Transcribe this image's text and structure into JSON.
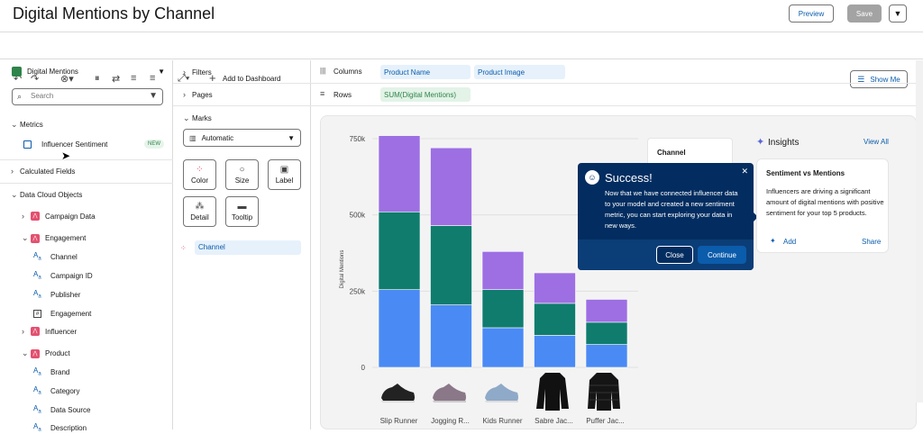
{
  "header": {
    "title": "Digital Mentions by Channel",
    "preview_label": "Preview",
    "save_label": "Save"
  },
  "toolbar": {
    "add_dashboard_label": "Add to Dashboard",
    "show_me_label": "Show Me"
  },
  "data_panel": {
    "source_label": "Digital Mentions",
    "search_placeholder": "Search",
    "metrics_label": "Metrics",
    "metric_item": "Influencer Sentiment",
    "metric_badge": "NEW",
    "calc_fields_label": "Calculated Fields",
    "dco_label": "Data Cloud Objects",
    "objects": [
      {
        "label": "Campaign Data"
      },
      {
        "label": "Engagement",
        "fields": [
          "Channel",
          "Campaign ID",
          "Publisher",
          "Engagement"
        ]
      },
      {
        "label": "Influencer"
      },
      {
        "label": "Product",
        "fields": [
          "Brand",
          "Category",
          "Data Source",
          "Description"
        ]
      }
    ]
  },
  "marks_panel": {
    "filters_label": "Filters",
    "pages_label": "Pages",
    "marks_label": "Marks",
    "mark_type": "Automatic",
    "buttons": [
      "Color",
      "Size",
      "Label",
      "Detail",
      "Tooltip"
    ],
    "color_field": "Channel"
  },
  "shelves": {
    "columns_label": "Columns",
    "columns": [
      "Product Name",
      "Product Image"
    ],
    "rows_label": "Rows",
    "rows": [
      "SUM(Digital Mentions)"
    ]
  },
  "chart_data": {
    "type": "bar",
    "stacked": true,
    "categories": [
      "Slip Runner",
      "Jogging R...",
      "Kids Runner",
      "Sabre Jac...",
      "Puffer Jac..."
    ],
    "series": [
      {
        "values": [
          255000,
          205000,
          130000,
          105000,
          75000
        ],
        "color": "#4a8af4"
      },
      {
        "values": [
          255000,
          260000,
          125000,
          105000,
          73000
        ],
        "color": "#0f7c6e"
      },
      {
        "values": [
          250000,
          255000,
          125000,
          100000,
          75000
        ],
        "color": "#9d6fe3"
      }
    ],
    "ylabel": "Digital Mentions",
    "yticks": [
      "0",
      "250k",
      "500k",
      "750k"
    ],
    "ylim": [
      0,
      750000
    ]
  },
  "legend": {
    "title": "Channel"
  },
  "popover": {
    "title": "Success!",
    "body": "Now that we have connected influencer data to your model and created a new sentiment metric, you can start exploring your data in new ways.",
    "close_label": "Close",
    "continue_label": "Continue"
  },
  "insights": {
    "title": "Insights",
    "view_all": "View All",
    "card_title": "Sentiment vs Mentions",
    "card_body": "Influencers are driving a significant amount of digital mentions with positive sentiment for your top 5 products.",
    "add_label": "Add",
    "share_label": "Share"
  }
}
